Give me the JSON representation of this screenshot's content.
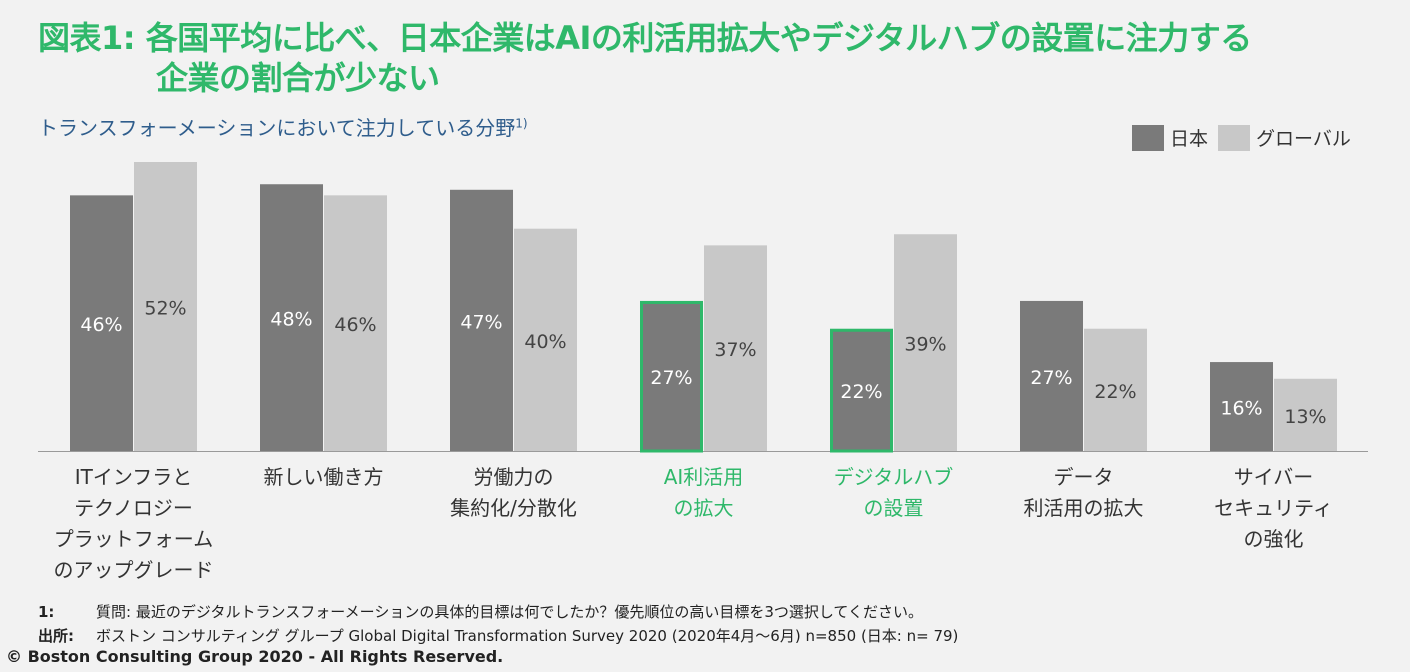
{
  "title_line1": "図表1: 各国平均に比べ、日本企業はAIの利活用拡大やデジタルハブの設置に注力する",
  "title_line2": "企業の割合が少ない",
  "subtitle": "トランスフォーメーションにおいて注力している分野",
  "subtitle_note": "1)",
  "colors": {
    "japan": "#7a7a7a",
    "global": "#c8c8c8",
    "highlight": "#2fb86a",
    "label_default": "#333333"
  },
  "chart_data": {
    "type": "bar",
    "categories": [
      [
        "ITインフラと",
        "テクノロジー",
        "プラットフォーム",
        "のアップグレード"
      ],
      [
        "新しい働き方"
      ],
      [
        "労働力の",
        "集約化/分散化"
      ],
      [
        "AI利活用",
        "の拡大"
      ],
      [
        "デジタルハブ",
        "の設置"
      ],
      [
        "データ",
        "利活用の拡大"
      ],
      [
        "サイバー",
        "セキュリティ",
        "の強化"
      ]
    ],
    "highlighted": [
      false,
      false,
      false,
      true,
      true,
      false,
      false
    ],
    "series": [
      {
        "name": "日本",
        "values": [
          46,
          48,
          47,
          27,
          22,
          27,
          16
        ]
      },
      {
        "name": "グローバル",
        "values": [
          52,
          46,
          40,
          37,
          39,
          22,
          13
        ]
      }
    ],
    "value_suffix": "%",
    "ylim": [
      0,
      56
    ],
    "legend_position": "top-right"
  },
  "footnotes": [
    {
      "key": "1:",
      "text": "質問: 最近のデジタルトランスフォーメーションの具体的目標は何でしたか？優先順位の高い目標を3つ選択してください。"
    },
    {
      "key": "出所:",
      "text": "ボストン コンサルティング グループ Global Digital Transformation Survey 2020 (2020年4月～6月) n=850 (日本: n= 79)"
    }
  ],
  "copyright": "© Boston Consulting Group 2020 - All Rights Reserved."
}
